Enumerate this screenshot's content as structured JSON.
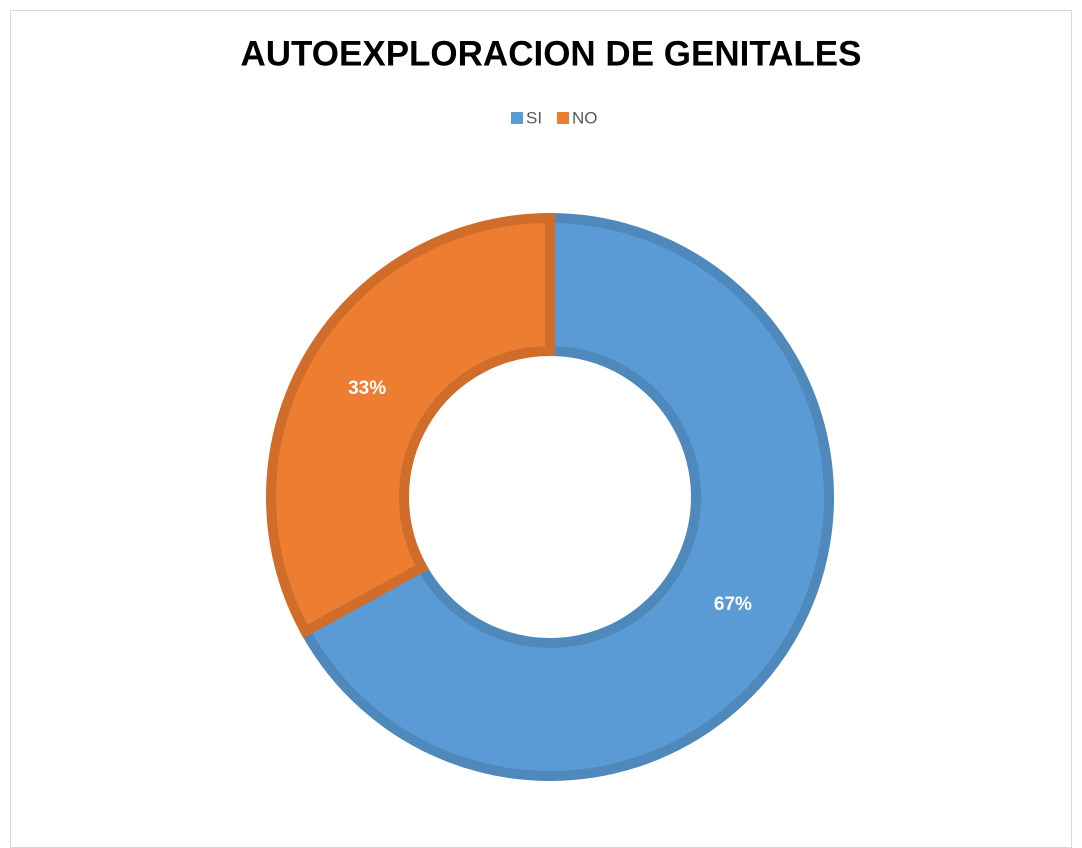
{
  "chart_data": {
    "type": "donut",
    "title": "AUTOEXPLORACION DE GENITALES",
    "categories": [
      "SI",
      "NO"
    ],
    "values": [
      67,
      33
    ],
    "value_labels": [
      "67%",
      "33%"
    ],
    "colors": [
      "#5b9bd5",
      "#ed7d31"
    ],
    "legend": "top"
  }
}
